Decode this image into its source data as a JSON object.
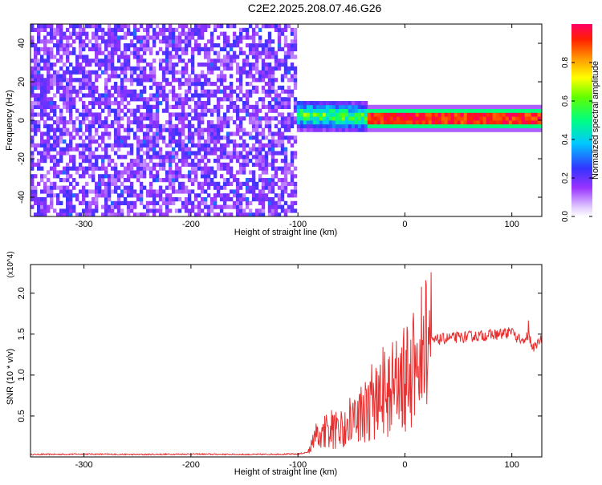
{
  "title": "C2E2.2025.208.07.46.G26",
  "chart_data": [
    {
      "type": "heatmap",
      "xlabel": "Height of straight line (km)",
      "ylabel": "Frequency (Hz)",
      "xlim": [
        -350,
        128
      ],
      "ylim": [
        -50,
        50
      ],
      "xticks": [
        -300,
        -200,
        -100,
        0,
        100
      ],
      "yticks": [
        -40,
        -20,
        0,
        20,
        40
      ],
      "colorbar": {
        "label": "Normalized spectral amplitude",
        "range": [
          0.0,
          1.0
        ],
        "ticks": [
          0.0,
          0.2,
          0.4,
          0.6,
          0.8
        ],
        "tick_labels": [
          "0.0",
          "0.2",
          "0.4",
          "0.6",
          "0.8"
        ],
        "colormap": "rainbow (white, purple, blue, cyan, green, yellow, orange, red, magenta)"
      },
      "regions": [
        {
          "x_range": [
            -350,
            -103
          ],
          "description": "noise",
          "amplitude_range": [
            0.0,
            0.25
          ]
        },
        {
          "x_range": [
            -103,
            -35
          ],
          "description": "signal band near 0 Hz",
          "frequency_center": 3,
          "amplitude_range": [
            0.4,
            0.7
          ]
        },
        {
          "x_range": [
            -35,
            128
          ],
          "description": "signal band at 1 Hz",
          "frequency_center": 1,
          "amplitude_range": [
            0.8,
            1.0
          ]
        }
      ]
    },
    {
      "type": "line",
      "xlabel": "Height of straight line (km)",
      "ylabel": "SNR (10 * v/v)",
      "y_multiplier": "(x10^4)",
      "xlim": [
        -350,
        128
      ],
      "ylim": [
        0,
        23500
      ],
      "xticks": [
        -300,
        -200,
        -100,
        0,
        100
      ],
      "yticks": [
        5000,
        10000,
        15000,
        20000
      ],
      "ytick_labels": [
        "0.5",
        "1.0",
        "1.5",
        "2.0"
      ],
      "series": [
        {
          "color": "#e83030",
          "x": [
            -350,
            -300,
            -250,
            -200,
            -150,
            -100,
            -90,
            -85,
            -80,
            -70,
            -60,
            -50,
            -40,
            -30,
            -20,
            -15,
            -10,
            -5,
            0,
            5,
            10,
            15,
            20,
            25,
            30,
            40,
            50,
            60,
            70,
            80,
            90,
            100,
            105,
            110,
            115,
            120,
            128
          ],
          "y": [
            300,
            350,
            300,
            350,
            300,
            350,
            600,
            2000,
            2500,
            3000,
            3500,
            4500,
            5500,
            6500,
            7500,
            8000,
            8500,
            9000,
            9500,
            10000,
            11000,
            12500,
            13500,
            14000,
            14300,
            14500,
            14600,
            14700,
            14800,
            14900,
            15000,
            15200,
            14500,
            14000,
            14800,
            13500,
            14500
          ]
        }
      ]
    }
  ]
}
